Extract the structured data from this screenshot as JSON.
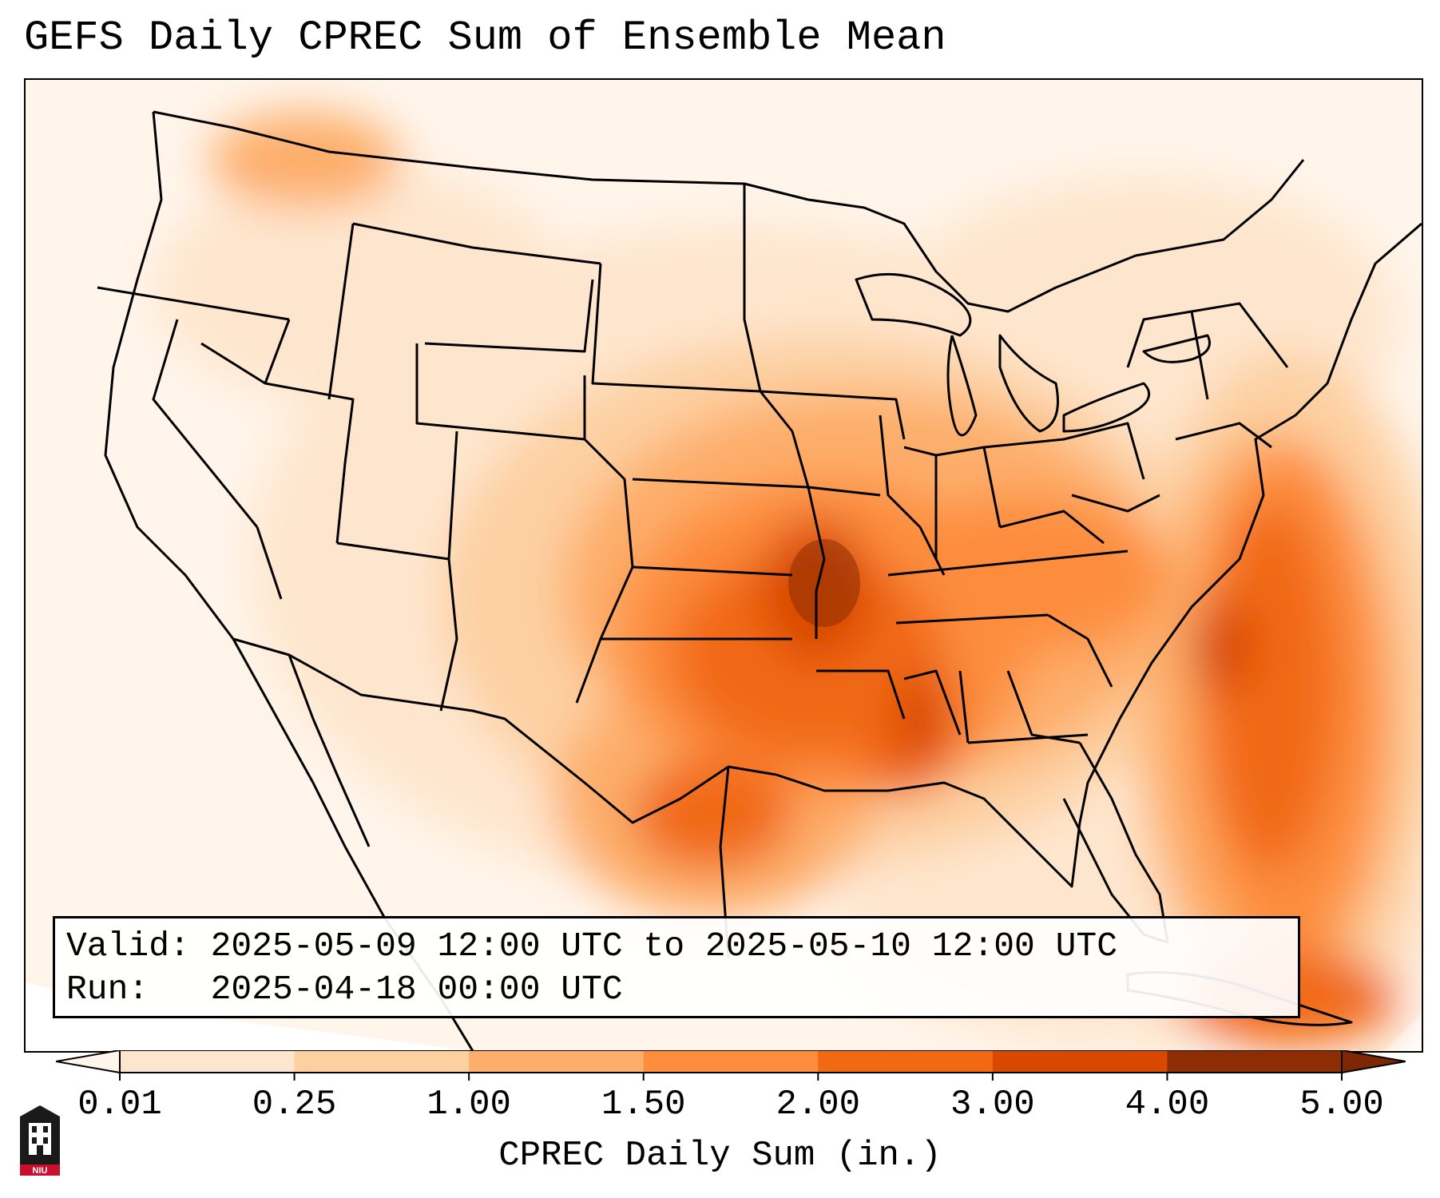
{
  "title": "GEFS Daily CPREC Sum of Ensemble Mean",
  "info": {
    "valid_line": "Valid: 2025-05-09 12:00 UTC to 2025-05-10 12:00 UTC",
    "run_line": "Run:   2025-04-18 00:00 UTC"
  },
  "colorbar": {
    "label": "CPREC Daily Sum (in.)",
    "ticks": [
      "0.01",
      "0.25",
      "1.00",
      "1.50",
      "2.00",
      "3.00",
      "4.00",
      "5.00"
    ],
    "colors": [
      "#fff5eb",
      "#fee6ce",
      "#fdd0a2",
      "#fdae6b",
      "#fd8d3c",
      "#f16913",
      "#d94801",
      "#8c2d04"
    ],
    "extend": "both"
  },
  "logo": {
    "text": "NIU"
  }
}
